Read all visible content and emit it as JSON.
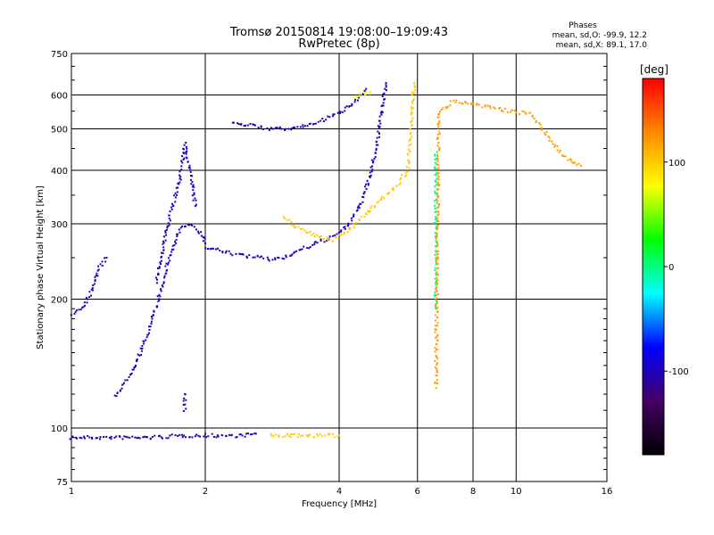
{
  "chart_data": {
    "type": "scatter",
    "title": "Tromsø 20150814 19:08:00–19:09:43",
    "subtitle": "RwPretec (8p)",
    "stats_header": "Phases",
    "stats_O": "mean, sd,O: -99.9, 12.2",
    "stats_X": "mean, sd,X:  89.1, 17.0",
    "xlabel": "Frequency [MHz]",
    "ylabel": "Stationary phase Virtual Height [km]",
    "x_scale": "log",
    "y_scale": "log",
    "xlim": [
      1,
      16
    ],
    "ylim": [
      75,
      750
    ],
    "x_ticks": [
      1,
      2,
      4,
      6,
      8,
      10,
      16
    ],
    "y_ticks": [
      75,
      100,
      200,
      300,
      400,
      500,
      600,
      750
    ],
    "grid": true,
    "colorbar": {
      "label": "[deg]",
      "range": [
        -180,
        180
      ],
      "ticks": [
        100,
        0,
        -100
      ],
      "colors": [
        "#000000",
        "#440066",
        "#0000ff",
        "#00ffff",
        "#00ff00",
        "#ffff00",
        "#ff8800",
        "#ff0000"
      ]
    },
    "echo_traces": [
      {
        "phase": -100,
        "points": [
          [
            1.0,
            95
          ],
          [
            1.2,
            95
          ],
          [
            1.5,
            95
          ],
          [
            1.8,
            96
          ],
          [
            2.0,
            96
          ],
          [
            2.4,
            96
          ],
          [
            2.6,
            97
          ]
        ]
      },
      {
        "phase": 100,
        "points": [
          [
            2.8,
            96
          ],
          [
            3.2,
            96
          ],
          [
            3.6,
            96
          ],
          [
            4.0,
            96
          ]
        ]
      },
      {
        "phase": -100,
        "points": [
          [
            1.0,
            185
          ],
          [
            1.05,
            190
          ],
          [
            1.1,
            205
          ],
          [
            1.15,
            235
          ],
          [
            1.2,
            250
          ]
        ]
      },
      {
        "phase": -100,
        "points": [
          [
            1.25,
            118
          ],
          [
            1.35,
            132
          ],
          [
            1.45,
            155
          ],
          [
            1.55,
            190
          ],
          [
            1.65,
            245
          ],
          [
            1.75,
            290
          ],
          [
            1.85,
            300
          ],
          [
            1.95,
            285
          ],
          [
            2.0,
            270
          ]
        ]
      },
      {
        "phase": -100,
        "points": [
          [
            1.55,
            220
          ],
          [
            1.65,
            300
          ],
          [
            1.75,
            380
          ],
          [
            1.8,
            460
          ],
          [
            1.85,
            400
          ],
          [
            1.9,
            330
          ]
        ]
      },
      {
        "phase": -100,
        "points": [
          [
            2.0,
            265
          ],
          [
            2.2,
            258
          ],
          [
            2.5,
            252
          ],
          [
            2.8,
            248
          ],
          [
            3.0,
            250
          ],
          [
            3.2,
            258
          ],
          [
            3.5,
            268
          ],
          [
            3.8,
            278
          ],
          [
            4.1,
            290
          ],
          [
            4.3,
            310
          ],
          [
            4.5,
            340
          ],
          [
            4.7,
            390
          ],
          [
            4.9,
            480
          ],
          [
            5.0,
            560
          ],
          [
            5.1,
            640
          ]
        ]
      },
      {
        "phase": -100,
        "points": [
          [
            2.3,
            520
          ],
          [
            2.5,
            510
          ],
          [
            2.8,
            500
          ],
          [
            3.1,
            500
          ],
          [
            3.4,
            510
          ],
          [
            3.7,
            525
          ],
          [
            4.0,
            545
          ],
          [
            4.3,
            575
          ],
          [
            4.6,
            620
          ]
        ]
      },
      {
        "phase": -100,
        "points": [
          [
            1.8,
            110
          ],
          [
            1.8,
            115
          ],
          [
            1.8,
            120
          ]
        ]
      },
      {
        "phase": 100,
        "points": [
          [
            3.0,
            310
          ],
          [
            3.3,
            290
          ],
          [
            3.6,
            280
          ],
          [
            3.9,
            275
          ],
          [
            4.2,
            290
          ],
          [
            4.5,
            310
          ],
          [
            4.8,
            330
          ],
          [
            5.1,
            350
          ],
          [
            5.4,
            370
          ],
          [
            5.7,
            400
          ],
          [
            5.8,
            480
          ],
          [
            5.85,
            560
          ],
          [
            5.9,
            640
          ]
        ]
      },
      {
        "phase": 80,
        "points": [
          [
            4.3,
            590
          ],
          [
            4.5,
            600
          ],
          [
            4.7,
            610
          ]
        ]
      },
      {
        "phase": 0,
        "points": [
          [
            6.6,
            440
          ],
          [
            6.6,
            380
          ],
          [
            6.6,
            300
          ],
          [
            6.6,
            270
          ],
          [
            6.6,
            220
          ],
          [
            6.6,
            190
          ]
        ]
      },
      {
        "phase": 120,
        "points": [
          [
            6.6,
            125
          ],
          [
            6.7,
            545
          ],
          [
            7.2,
            580
          ],
          [
            10.8,
            540
          ],
          [
            12.8,
            430
          ],
          [
            14.0,
            410
          ]
        ]
      }
    ]
  }
}
